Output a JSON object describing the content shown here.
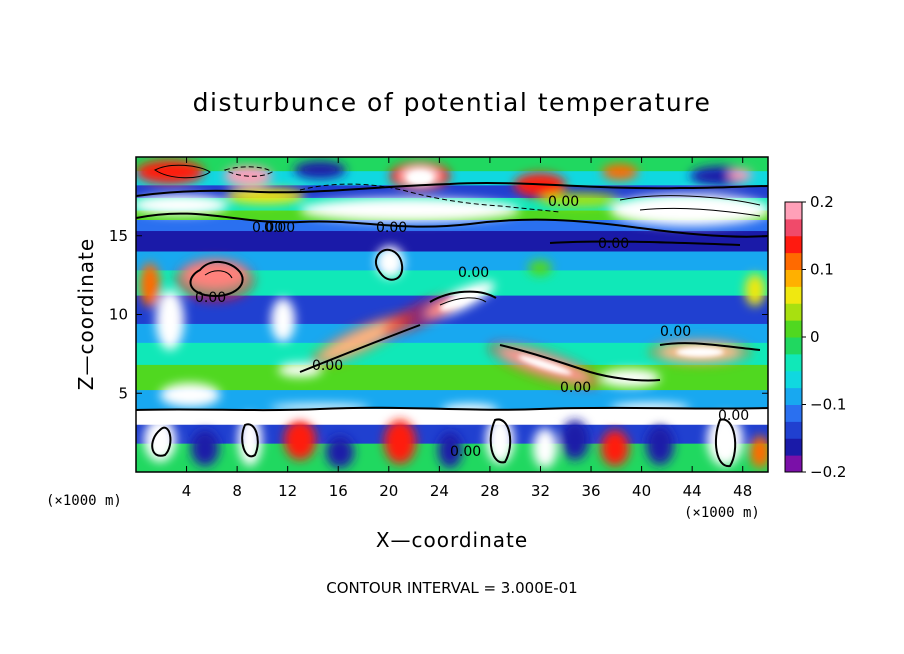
{
  "chart_data": {
    "type": "heatmap",
    "title": "disturbunce of potential temperature",
    "xlabel": "X—coordinate",
    "ylabel": "Z—coordinate",
    "x_unit_left": "(×1000 m)",
    "x_unit_right": "(×1000 m)",
    "xlim": [
      0,
      50
    ],
    "ylim": [
      0,
      20
    ],
    "xticks": [
      4,
      8,
      12,
      16,
      20,
      24,
      28,
      32,
      36,
      40,
      44,
      48
    ],
    "yticks": [
      5,
      10,
      15
    ],
    "colorbar": {
      "range": [
        -0.2,
        0.2
      ],
      "ticks": [
        "0.2",
        "0.1",
        "0",
        "−0.1",
        "−0.2"
      ],
      "tick_values": [
        0.2,
        0.1,
        0,
        -0.1,
        -0.2
      ],
      "colors": [
        "#7a10a8",
        "#1a1aa8",
        "#2040d0",
        "#2a70f0",
        "#18a8f0",
        "#10d8e0",
        "#10e8b8",
        "#20d860",
        "#50d820",
        "#a8e010",
        "#f0e810",
        "#ffb000",
        "#ff6a00",
        "#ff1a10",
        "#f04a6a",
        "#ffa0b8"
      ]
    },
    "contour_interval": "CONTOUR INTERVAL = 3.000E-01",
    "contour_labels": [
      "0.00",
      "0.00",
      "0.00",
      "0.00",
      "0.00",
      "0.00",
      "0.00",
      "0.00",
      "0.00",
      "0.00",
      "0.00",
      "0.00"
    ],
    "grid": false,
    "legend": "colorbar-right"
  }
}
